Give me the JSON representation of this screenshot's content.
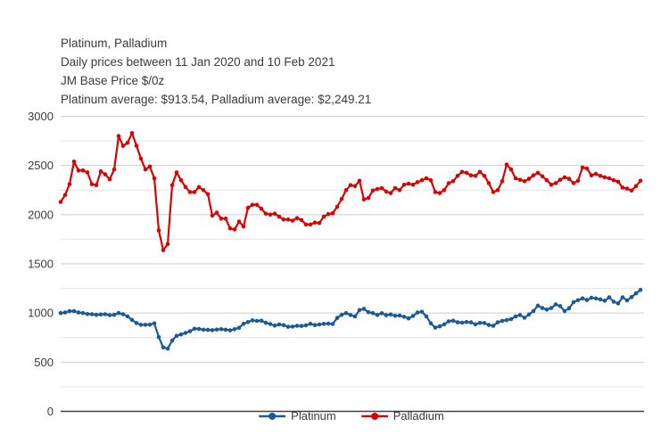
{
  "header": {
    "title": "Platinum, Palladium",
    "subtitle": "Daily prices between 11 Jan 2020 and 10 Feb 2021",
    "unit_line": "JM Base Price $/0z",
    "averages_line": "Platinum average: $913.54, Palladium average: $2,249.21"
  },
  "axis": {
    "y_label_color": "#3c3c3c",
    "major_grid_color": "#cccccc",
    "minor_grid_color": "#e4e4e4",
    "axis_line_color": "#404040"
  },
  "chart_data": {
    "type": "line",
    "title": "Platinum, Palladium",
    "subtitle": "Daily prices between 11 Jan 2020 and 10 Feb 2021",
    "ylabel": "JM Base Price $/0z",
    "date_start": "11 Jan 2020",
    "date_end": "10 Feb 2021",
    "ylim": [
      0,
      3000
    ],
    "y_ticks": [
      0,
      500,
      1000,
      1500,
      2000,
      2500,
      3000
    ],
    "y_minor_step": 250,
    "grid": true,
    "legend_position": "bottom",
    "series": [
      {
        "name": "Platinum",
        "color": "#1a5a96",
        "average": 913.54,
        "values": [
          1000,
          1005,
          1020,
          1020,
          1005,
          1000,
          990,
          988,
          982,
          985,
          988,
          978,
          982,
          1000,
          988,
          965,
          930,
          898,
          880,
          880,
          882,
          895,
          755,
          650,
          638,
          720,
          768,
          782,
          798,
          815,
          840,
          838,
          830,
          828,
          826,
          832,
          836,
          830,
          824,
          836,
          850,
          890,
          908,
          925,
          920,
          922,
          901,
          888,
          872,
          884,
          876,
          860,
          862,
          870,
          868,
          875,
          890,
          877,
          884,
          890,
          892,
          888,
          950,
          982,
          1000,
          980,
          965,
          1030,
          1042,
          1008,
          1000,
          980,
          998,
          978,
          985,
          972,
          974,
          962,
          945,
          970,
          1005,
          1012,
          965,
          895,
          852,
          865,
          885,
          915,
          922,
          905,
          902,
          908,
          905,
          885,
          900,
          898,
          878,
          870,
          905,
          920,
          928,
          938,
          965,
          980,
          952,
          985,
          1020,
          1075,
          1050,
          1035,
          1050,
          1088,
          1070,
          1020,
          1048,
          1110,
          1130,
          1148,
          1132,
          1155,
          1148,
          1138,
          1125,
          1160,
          1115,
          1098,
          1160,
          1128,
          1162,
          1200,
          1235
        ]
      },
      {
        "name": "Palladium",
        "color": "#d60505",
        "average": 2249.21,
        "values": [
          2130,
          2200,
          2310,
          2540,
          2450,
          2450,
          2430,
          2310,
          2300,
          2440,
          2410,
          2360,
          2460,
          2800,
          2700,
          2730,
          2830,
          2700,
          2570,
          2460,
          2490,
          2370,
          1840,
          1640,
          1700,
          2300,
          2430,
          2350,
          2280,
          2230,
          2230,
          2280,
          2250,
          2210,
          1990,
          2020,
          1960,
          1960,
          1860,
          1850,
          1930,
          1880,
          2070,
          2100,
          2100,
          2060,
          2010,
          2000,
          2010,
          1980,
          1950,
          1950,
          1940,
          1965,
          1945,
          1900,
          1900,
          1920,
          1915,
          1980,
          2005,
          2015,
          2080,
          2160,
          2250,
          2300,
          2290,
          2345,
          2155,
          2170,
          2245,
          2260,
          2270,
          2235,
          2220,
          2270,
          2250,
          2305,
          2315,
          2305,
          2330,
          2350,
          2370,
          2350,
          2230,
          2220,
          2250,
          2320,
          2340,
          2395,
          2435,
          2425,
          2400,
          2395,
          2435,
          2395,
          2320,
          2230,
          2250,
          2340,
          2510,
          2460,
          2370,
          2355,
          2340,
          2365,
          2400,
          2425,
          2390,
          2350,
          2305,
          2320,
          2355,
          2380,
          2365,
          2320,
          2345,
          2480,
          2470,
          2400,
          2415,
          2395,
          2380,
          2370,
          2350,
          2335,
          2275,
          2265,
          2245,
          2290,
          2345
        ]
      }
    ]
  },
  "legend": {
    "items": [
      {
        "label": "Platinum"
      },
      {
        "label": "Palladium"
      }
    ]
  }
}
